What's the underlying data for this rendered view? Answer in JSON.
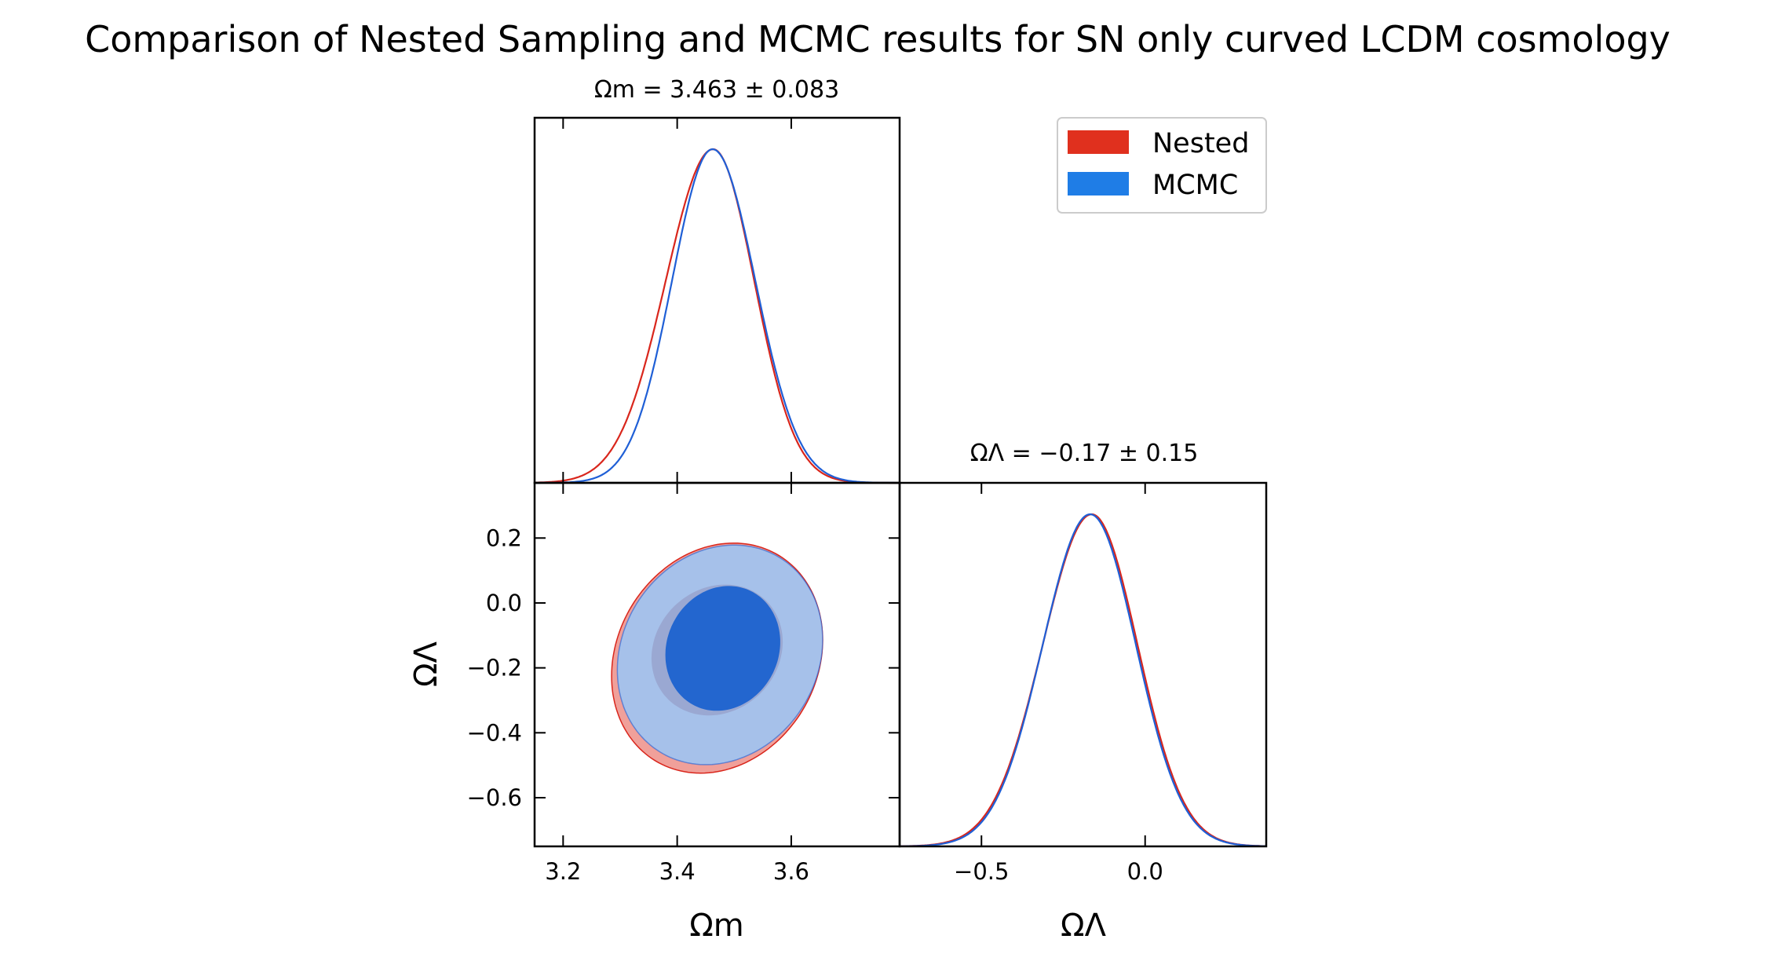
{
  "chart_data": {
    "type": "corner",
    "title": "Comparison of Nested Sampling and MCMC results for SN only curved LCDM cosmology",
    "colors": {
      "nested_line": "#d9261c",
      "mcmc_line": "#1f5fd6",
      "nested_legend": "#e0301e",
      "mcmc_legend": "#1f7de6",
      "nested_fill_outer": "#f0a09a",
      "mcmc_fill_outer": "#a6c1ea",
      "mcmc_fill_inner": "#2366cf",
      "nested_fill_inner": "#9aa8d2"
    },
    "legend": {
      "position": "top-right",
      "entries": [
        {
          "name": "Nested"
        },
        {
          "name": "MCMC"
        }
      ]
    },
    "parameters": [
      {
        "key": "om",
        "label": "Ωm",
        "summary": "Ωm = 3.463 ± 0.083",
        "xlim": [
          3.15,
          3.79
        ],
        "ticks": [
          3.2,
          3.4,
          3.6
        ],
        "tick_labels": [
          "3.2",
          "3.4",
          "3.6"
        ],
        "marginals": {
          "Nested": {
            "mean": 3.463,
            "sigma_left": 0.083,
            "sigma_right": 0.072
          },
          "MCMC": {
            "mean": 3.462,
            "sigma_left": 0.071,
            "sigma_right": 0.075
          }
        }
      },
      {
        "key": "ol",
        "label": "ΩΛ",
        "summary": "ΩΛ = −0.17 ± 0.15",
        "xlim": [
          -0.75,
          0.37
        ],
        "ticks": [
          -0.5,
          0.0
        ],
        "tick_labels": [
          "−0.5",
          "0.0"
        ],
        "marginals": {
          "Nested": {
            "mean": -0.163,
            "sigma_left": 0.15,
            "sigma_right": 0.14
          },
          "MCMC": {
            "mean": -0.168,
            "sigma_left": 0.145,
            "sigma_right": 0.14
          }
        }
      }
    ],
    "joint_2d": {
      "x": "om",
      "y": "ol",
      "ylim": [
        -0.75,
        0.37
      ],
      "yticks": [
        -0.6,
        -0.4,
        -0.2,
        0.0,
        0.2
      ],
      "ytick_labels": [
        "−0.6",
        "−0.4",
        "−0.2",
        "0.0",
        "0.2"
      ],
      "contours": {
        "Nested_95": {
          "cx": 3.47,
          "cy": -0.17,
          "sx": 0.185,
          "sy": 0.35,
          "tilt": 0.3
        },
        "MCMC_95": {
          "cx": 3.475,
          "cy": -0.16,
          "sx": 0.18,
          "sy": 0.335,
          "tilt": 0.26
        },
        "Nested_68": {
          "cx": 3.47,
          "cy": -0.145,
          "sx": 0.115,
          "sy": 0.2,
          "tilt": 0.22
        },
        "MCMC_68": {
          "cx": 3.48,
          "cy": -0.14,
          "sx": 0.1,
          "sy": 0.19,
          "tilt": 0.2
        }
      }
    }
  }
}
